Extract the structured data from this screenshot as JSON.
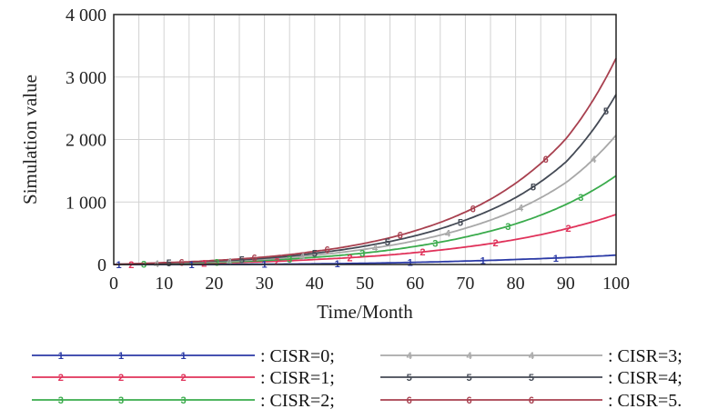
{
  "chart_data": {
    "type": "line",
    "xlabel": "Time/Month",
    "ylabel": "Simulation value",
    "xlim": [
      0,
      100
    ],
    "ylim": [
      0,
      4000
    ],
    "x_ticks": [
      0,
      10,
      20,
      30,
      40,
      50,
      60,
      70,
      80,
      90,
      100
    ],
    "x_tick_labels": [
      "0",
      "10",
      "20",
      "30",
      "40",
      "50",
      "60",
      "70",
      "80",
      "90",
      "100"
    ],
    "y_ticks": [
      0,
      1000,
      2000,
      3000,
      4000
    ],
    "y_tick_labels": [
      "0",
      "1 000",
      "2 000",
      "3 000",
      "4 000"
    ],
    "grid": true,
    "x": [
      0,
      10,
      20,
      30,
      40,
      50,
      60,
      70,
      80,
      90,
      100
    ],
    "series": [
      {
        "name": "CISR=0",
        "marker": "1",
        "color": "#2b3aa6",
        "values": [
          0,
          0,
          0,
          5,
          10,
          20,
          35,
          55,
          80,
          110,
          150
        ]
      },
      {
        "name": "CISR=1",
        "marker": "2",
        "color": "#e0325a",
        "values": [
          0,
          10,
          25,
          45,
          80,
          125,
          190,
          280,
          400,
          570,
          800
        ]
      },
      {
        "name": "CISR=2",
        "marker": "3",
        "color": "#3aab4c",
        "values": [
          0,
          15,
          35,
          65,
          115,
          185,
          290,
          440,
          650,
          960,
          1420
        ]
      },
      {
        "name": "CISR=3",
        "marker": "4",
        "color": "#a8a8a8",
        "values": [
          0,
          20,
          45,
          85,
          150,
          245,
          380,
          580,
          870,
          1310,
          2070
        ]
      },
      {
        "name": "CISR=4",
        "marker": "5",
        "color": "#444a55",
        "values": [
          0,
          25,
          55,
          100,
          180,
          295,
          460,
          710,
          1070,
          1640,
          2720
        ]
      },
      {
        "name": "CISR=5",
        "marker": "6",
        "color": "#a8404f",
        "values": [
          0,
          30,
          65,
          120,
          210,
          340,
          540,
          840,
          1300,
          2010,
          3300
        ]
      }
    ],
    "legend": {
      "placement": "bottom",
      "labels": [
        ": CISR=0;",
        ": CISR=1;",
        ": CISR=2;",
        ": CISR=3;",
        ": CISR=4;",
        ": CISR=5."
      ]
    }
  }
}
